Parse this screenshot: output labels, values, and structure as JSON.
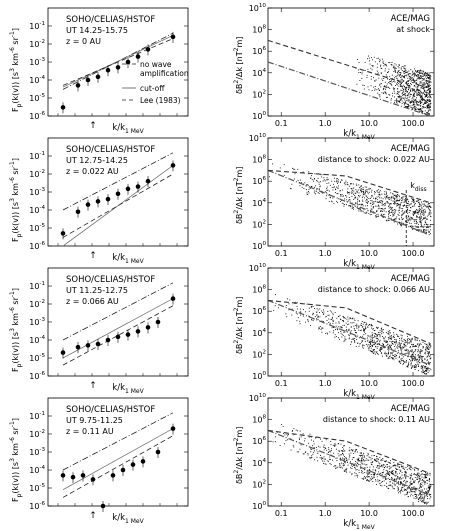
{
  "figure": {
    "left_column": {
      "xlabel": "k/k",
      "xlabel_sub": "1 MeV",
      "ylabel": "F",
      "ylabel_sub": "p",
      "ylabel_rest": "(k(v)) [s",
      "ylabel_tail": " km",
      "ylabel_tail2": " sr",
      "ylabel_end": "]",
      "ylabel_sup1": "3",
      "ylabel_sup2": "-6",
      "ylabel_sup3": "-1",
      "arrow": "↑",
      "ytick_labels": [
        "10",
        "10",
        "10",
        "10",
        "10",
        "10"
      ],
      "ytick_exps": [
        "-1",
        "-2",
        "-3",
        "-4",
        "-5",
        "-6"
      ]
    },
    "right_column": {
      "xlabel": "k/k",
      "xlabel_sub": "1 MeV",
      "ylabel": "δB",
      "ylabel_sup": "2",
      "ylabel_rest": "/Δk [nT",
      "ylabel_sup2": "2",
      "ylabel_end": "m]",
      "xtick_labels": [
        "0.1",
        "1.0",
        "10.0",
        "100.0"
      ],
      "ytick_labels": [
        "10",
        "10",
        "10",
        "10",
        "10",
        "10"
      ],
      "ytick_exps": [
        "10",
        "8",
        "6",
        "4",
        "2",
        "0"
      ],
      "kdiss_label": "k",
      "kdiss_sub": "diss"
    },
    "legend": {
      "no_wave_line1": "no wave",
      "no_wave_line2": "amplification",
      "cutoff": "cut-off",
      "lee": "Lee (1983)"
    }
  },
  "chart_data": [
    {
      "panel": "left-1",
      "type": "scatter",
      "instrument": "SOHO/CELIAS/HSTOF",
      "time": "UT 14.25-15.75",
      "distance": "z = 0 AU",
      "yscale": "log",
      "ylim": [
        1e-06,
        1
      ],
      "points": [
        [
          -0.85,
          3e-06
        ],
        [
          -0.7,
          5e-05
        ],
        [
          -0.6,
          0.0001
        ],
        [
          -0.5,
          0.00015
        ],
        [
          -0.4,
          0.00035
        ],
        [
          -0.3,
          0.0005
        ],
        [
          -0.2,
          0.001
        ],
        [
          -0.1,
          0.002
        ],
        [
          0.0,
          0.005
        ],
        [
          0.25,
          0.025
        ]
      ],
      "model_lines": {
        "no_wave": [
          [
            -0.85,
            3e-05
          ],
          [
            0.25,
            0.04
          ]
        ],
        "cutoff": [
          [
            -0.85,
            4e-05
          ],
          [
            0.25,
            0.03
          ]
        ],
        "lee": [
          [
            -0.85,
            5e-05
          ],
          [
            0.25,
            0.02
          ]
        ]
      }
    },
    {
      "panel": "left-2",
      "type": "scatter",
      "instrument": "SOHO/CELIAS/HSTOF",
      "time": "UT 12.75-14.25",
      "distance": "z = 0.022 AU",
      "yscale": "log",
      "ylim": [
        1e-06,
        1
      ],
      "points": [
        [
          -0.85,
          5e-06
        ],
        [
          -0.7,
          8e-05
        ],
        [
          -0.6,
          0.0002
        ],
        [
          -0.5,
          0.0003
        ],
        [
          -0.4,
          0.0004
        ],
        [
          -0.3,
          0.0008
        ],
        [
          -0.2,
          0.0015
        ],
        [
          -0.1,
          0.002
        ],
        [
          0.0,
          0.004
        ],
        [
          0.25,
          0.03
        ]
      ],
      "model_lines": {
        "no_wave": [
          [
            -0.85,
            0.0001
          ],
          [
            0.25,
            0.15
          ]
        ],
        "cutoff": [
          [
            -0.85,
            1e-06
          ],
          [
            0.25,
            0.03
          ]
        ],
        "lee": [
          [
            -0.85,
            3e-06
          ],
          [
            0.25,
            0.01
          ]
        ]
      }
    },
    {
      "panel": "left-3",
      "type": "scatter",
      "instrument": "SOHO/CELIAS/HSTOF",
      "time": "UT 11.25-12.75",
      "distance": "z = 0.066 AU",
      "yscale": "log",
      "ylim": [
        1e-06,
        1
      ],
      "points": [
        [
          -0.85,
          2e-05
        ],
        [
          -0.7,
          4e-05
        ],
        [
          -0.6,
          5e-05
        ],
        [
          -0.5,
          6e-05
        ],
        [
          -0.4,
          0.0001
        ],
        [
          -0.3,
          0.00015
        ],
        [
          -0.2,
          0.0002
        ],
        [
          -0.1,
          0.0003
        ],
        [
          0.0,
          0.0005
        ],
        [
          0.1,
          0.001
        ],
        [
          0.25,
          0.02
        ]
      ],
      "model_lines": {
        "no_wave": [
          [
            -0.85,
            0.0001
          ],
          [
            0.25,
            0.15
          ]
        ],
        "cutoff": [
          [
            -0.85,
            1e-05
          ],
          [
            0.25,
            0.02
          ]
        ],
        "lee": [
          [
            -0.85,
            4e-06
          ],
          [
            0.25,
            0.008
          ]
        ]
      }
    },
    {
      "panel": "left-4",
      "type": "scatter",
      "instrument": "SOHO/CELIAS/HSTOF",
      "time": "UT 9.75-11.25",
      "distance": "z = 0.11 AU",
      "yscale": "log",
      "ylim": [
        1e-06,
        1
      ],
      "points": [
        [
          -0.85,
          5e-05
        ],
        [
          -0.75,
          4e-05
        ],
        [
          -0.65,
          5e-05
        ],
        [
          -0.55,
          3e-05
        ],
        [
          -0.45,
          1e-06
        ],
        [
          -0.35,
          5e-05
        ],
        [
          -0.25,
          0.0001
        ],
        [
          -0.15,
          0.0002
        ],
        [
          -0.05,
          0.0003
        ],
        [
          0.1,
          0.001
        ],
        [
          0.25,
          0.02
        ]
      ],
      "model_lines": {
        "no_wave": [
          [
            -0.85,
            0.0001
          ],
          [
            0.25,
            0.15
          ]
        ],
        "cutoff": [
          [
            -0.85,
            8e-06
          ],
          [
            0.25,
            0.02
          ]
        ],
        "lee": [
          [
            -0.85,
            3e-06
          ],
          [
            0.25,
            0.008
          ]
        ]
      }
    },
    {
      "panel": "right-1",
      "type": "scatter",
      "instrument": "ACE/MAG",
      "label": "at shock",
      "xscale": "log",
      "yscale": "log",
      "xlim": [
        0.05,
        300
      ],
      "ylim": [
        1,
        10000000000.0
      ],
      "cloud": {
        "x_start": 3,
        "x_end": 250,
        "y_top_start": 2000000.0,
        "y_top_end": 10000.0,
        "y_bot_start": 1000.0,
        "y_bot_end": 1.0
      },
      "model_lines": {
        "dashdot": [
          [
            0.05,
            100000.0
          ],
          [
            250,
            1.0
          ]
        ],
        "dashed": [
          [
            0.05,
            10000000.0
          ],
          [
            70,
            1000.0
          ],
          [
            250,
            10.0
          ]
        ]
      }
    },
    {
      "panel": "right-2",
      "type": "scatter",
      "instrument": "ACE/MAG",
      "label": "distance to shock: 0.022 AU",
      "xscale": "log",
      "yscale": "log",
      "xlim": [
        0.05,
        300
      ],
      "ylim": [
        1,
        10000000000.0
      ],
      "cloud": {
        "x_start": 0.05,
        "x_end": 250,
        "y_top_start": 100000000.0,
        "y_top_end": 10000.0,
        "y_bot_start": 1000000.0,
        "y_bot_end": 10.0
      },
      "model_lines": {
        "dashdot": [
          [
            0.05,
            10000000.0
          ],
          [
            250,
            10.0
          ]
        ],
        "dashed": [
          [
            0.05,
            10000000.0
          ],
          [
            3,
            3000000.0
          ],
          [
            250,
            10000.0
          ]
        ]
      },
      "k_diss": 70
    },
    {
      "panel": "right-3",
      "type": "scatter",
      "instrument": "ACE/MAG",
      "label": "distance to shock: 0.066 AU",
      "xscale": "log",
      "yscale": "log",
      "xlim": [
        0.05,
        300
      ],
      "ylim": [
        1,
        10000000000.0
      ],
      "cloud": {
        "x_start": 0.05,
        "x_end": 250,
        "y_top_start": 100000000.0,
        "y_top_end": 1000.0,
        "y_bot_start": 1000000.0,
        "y_bot_end": 1.0
      },
      "model_lines": {
        "dashdot": [
          [
            0.05,
            10000000.0
          ],
          [
            250,
            10.0
          ]
        ],
        "dashed": [
          [
            0.05,
            10000000.0
          ],
          [
            3,
            2000000.0
          ],
          [
            250,
            1000.0
          ]
        ]
      }
    },
    {
      "panel": "right-4",
      "type": "scatter",
      "instrument": "ACE/MAG",
      "label": "distance to shock: 0.11 AU",
      "xscale": "log",
      "yscale": "log",
      "xlim": [
        0.05,
        300
      ],
      "ylim": [
        1,
        10000000000.0
      ],
      "cloud": {
        "x_start": 0.05,
        "x_end": 250,
        "y_top_start": 100000000.0,
        "y_top_end": 1000.0,
        "y_bot_start": 1000000.0,
        "y_bot_end": 1.0
      },
      "model_lines": {
        "dashdot": [
          [
            0.05,
            10000000.0
          ],
          [
            250,
            10.0
          ]
        ],
        "dashed": [
          [
            0.05,
            10000000.0
          ],
          [
            3,
            1000000.0
          ],
          [
            250,
            1000.0
          ]
        ]
      }
    }
  ]
}
